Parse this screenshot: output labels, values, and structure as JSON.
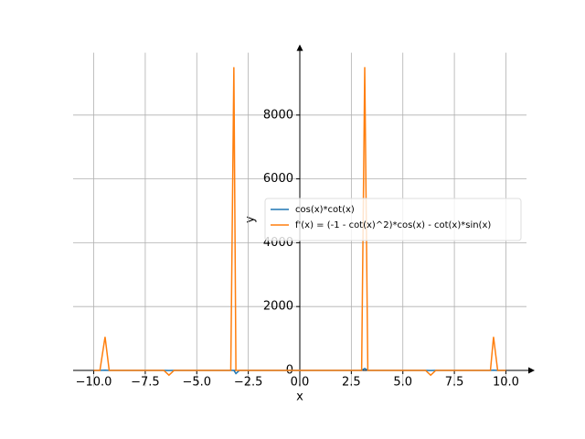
{
  "chart_data": {
    "type": "line",
    "x_label": "x",
    "y_label": "y",
    "x": [
      -10,
      -9.7,
      -9.45,
      -9.25,
      -7,
      -6.6,
      -6.35,
      -6.1,
      -3.5,
      -3.35,
      -3.2,
      -3.1,
      -2.93,
      -1,
      1,
      2.9,
      3.0,
      3.15,
      3.3,
      6.1,
      6.35,
      6.6,
      9.1,
      9.25,
      9.4,
      9.6,
      10
    ],
    "series": [
      {
        "name": "cos(x)*cot(x)",
        "color": "#1f77b4",
        "values": [
          0,
          0,
          5,
          0,
          0,
          0,
          -3,
          0,
          0,
          0,
          0,
          -100,
          0,
          0,
          0,
          0,
          0,
          60,
          0,
          0,
          -3,
          0,
          0,
          0,
          5,
          0,
          0
        ]
      },
      {
        "name": "f'(x) = (-1 - cot(x)^2)*cos(x) - cot(x)*sin(x)",
        "color": "#ff7f0e",
        "values": [
          0,
          0,
          1050,
          0,
          0,
          0,
          -150,
          0,
          0,
          0,
          9500,
          0,
          0,
          0,
          0,
          0,
          0,
          9500,
          0,
          0,
          -150,
          0,
          0,
          0,
          1050,
          0,
          0
        ]
      }
    ],
    "xlim": [
      -11,
      11
    ],
    "ylim": [
      -499,
      9954
    ],
    "xticks": [
      {
        "value": -10,
        "label": "−10.0"
      },
      {
        "value": -7.5,
        "label": "−7.5"
      },
      {
        "value": -5,
        "label": "−5.0"
      },
      {
        "value": -2.5,
        "label": "−2.5"
      },
      {
        "value": 0,
        "label": "0.0"
      },
      {
        "value": 2.5,
        "label": "2.5"
      },
      {
        "value": 5,
        "label": "5.0"
      },
      {
        "value": 7.5,
        "label": "7.5"
      },
      {
        "value": 10,
        "label": "10.0"
      }
    ],
    "yticks": [
      0,
      2000,
      4000,
      6000,
      8000
    ],
    "grid": true,
    "legend": "center right"
  }
}
